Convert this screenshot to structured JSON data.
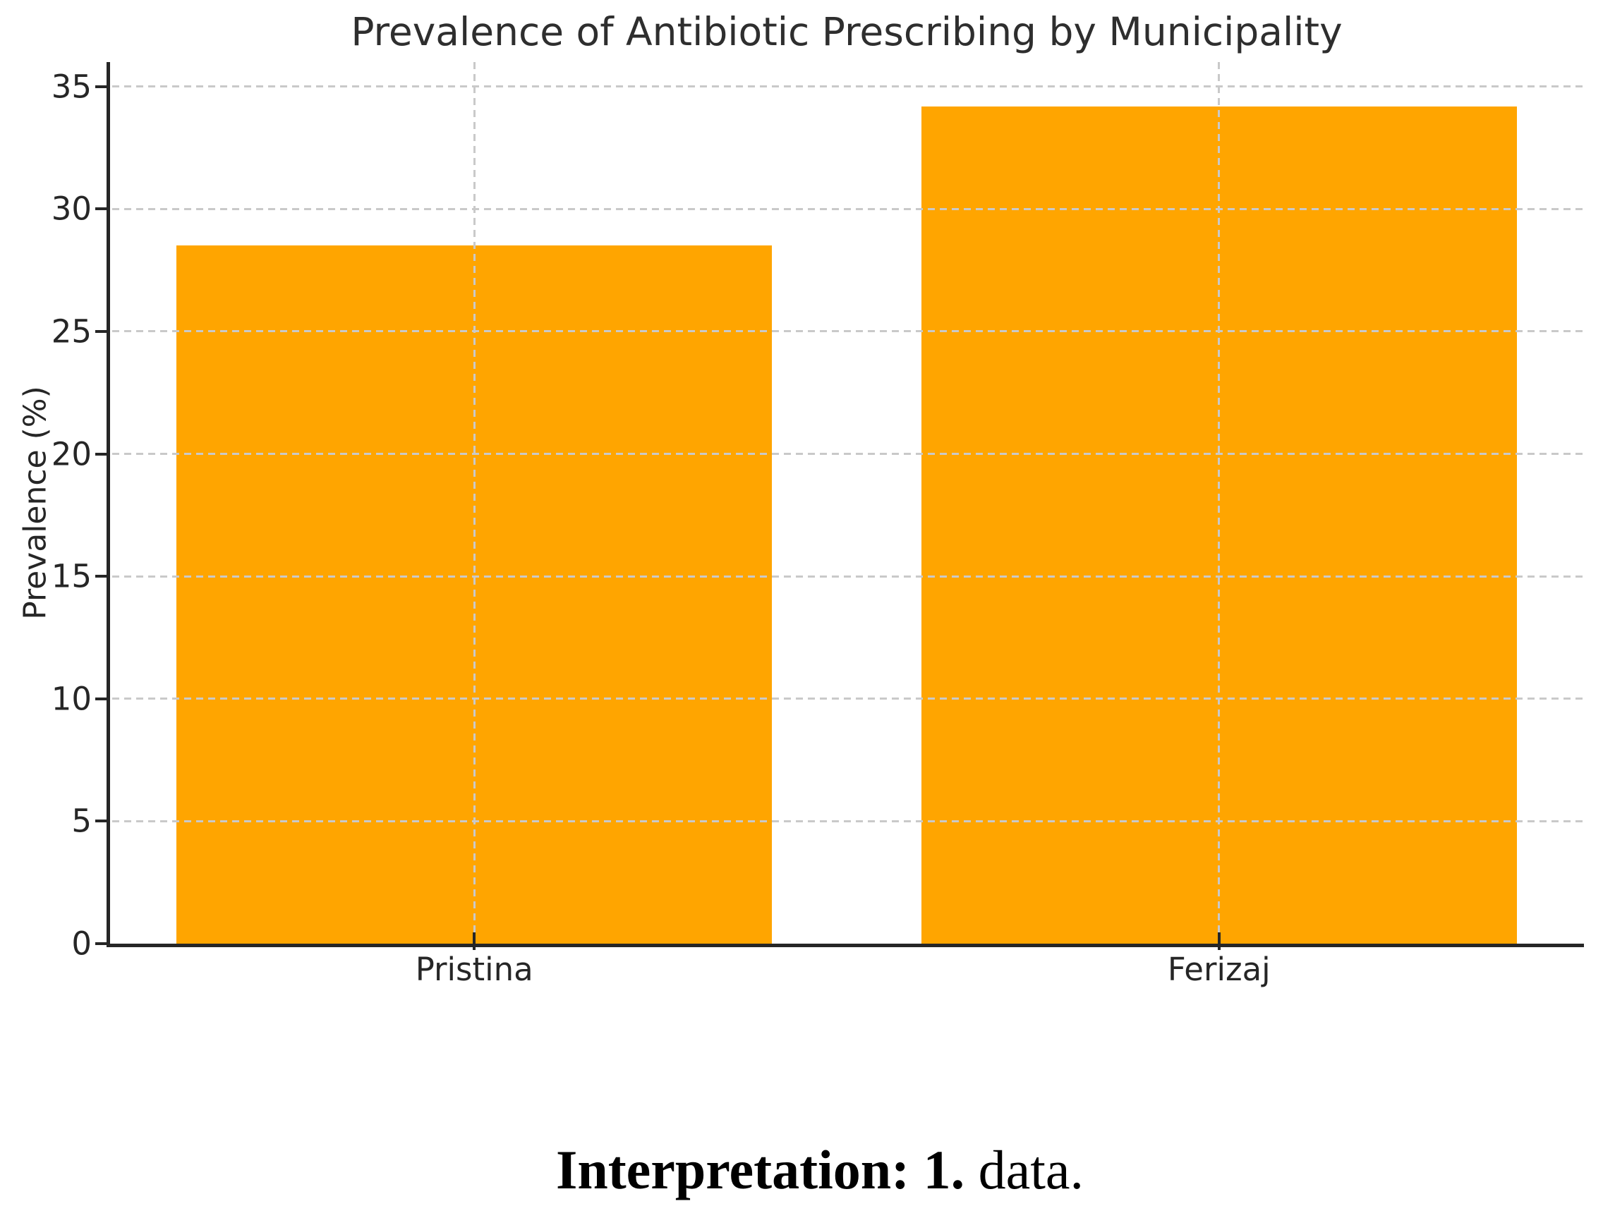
{
  "chart_data": {
    "type": "bar",
    "title": "Prevalence of Antibiotic Prescribing by Municipality",
    "categories": [
      "Pristina",
      "Ferizaj"
    ],
    "values": [
      28.5,
      34.2
    ],
    "xlabel": "",
    "ylabel": "Prevalence (%)",
    "ylim": [
      0,
      36
    ],
    "yticks": [
      0,
      5,
      10,
      15,
      20,
      25,
      30,
      35
    ],
    "bar_color": "#FFA500",
    "grid": {
      "style": "dashed",
      "color": "#c9c9c9",
      "horizontal": true,
      "vertical": true,
      "above_bars": true
    },
    "legend": null
  },
  "caption": {
    "bold_text": "Interpretation: 1.",
    "normal_text": " data."
  },
  "colors": {
    "axis": "#262626",
    "text": "#262626",
    "background": "#ffffff",
    "caption_text": "#000000"
  }
}
